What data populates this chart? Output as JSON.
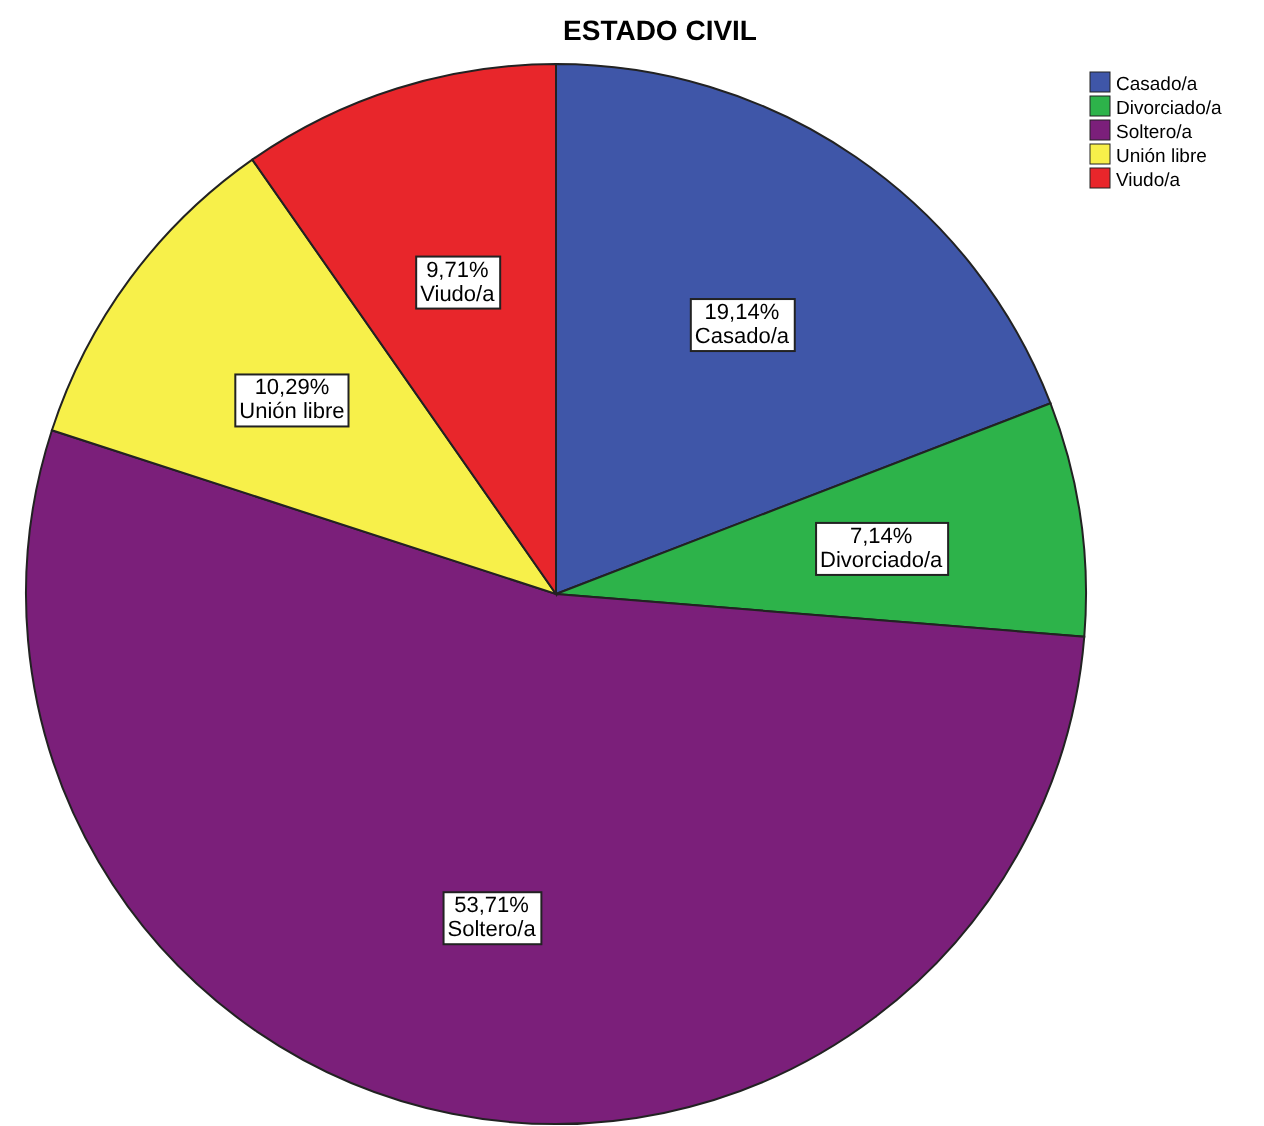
{
  "chart_data": {
    "type": "pie",
    "title": "ESTADO CIVIL",
    "categories": [
      "Casado/a",
      "Divorciado/a",
      "Soltero/a",
      "Unión libre",
      "Viudo/a"
    ],
    "values": [
      19.14,
      7.14,
      53.71,
      10.29,
      9.71
    ],
    "value_labels": [
      "19,14%",
      "7,14%",
      "53,71%",
      "10,29%",
      "9,71%"
    ],
    "colors": [
      "#3f56a8",
      "#2db34a",
      "#7b1f7a",
      "#f7f04a",
      "#e8262b"
    ],
    "legend": "top right"
  }
}
